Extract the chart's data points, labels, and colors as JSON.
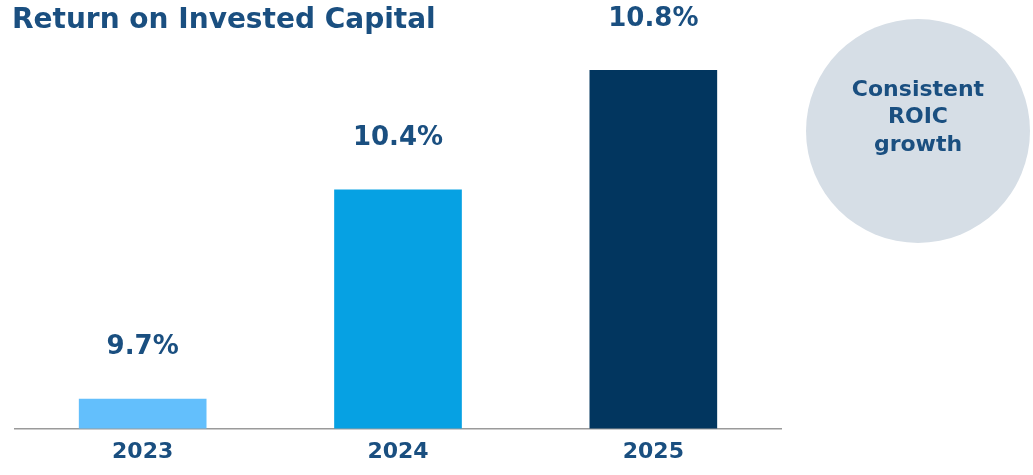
{
  "chart_data": {
    "type": "bar",
    "title": "Return on Invested Capital",
    "categories": [
      "2023",
      "2024",
      "2025"
    ],
    "values": [
      9.7,
      10.4,
      10.8
    ],
    "colors": [
      "#63bffc",
      "#06a1e3",
      "#02365f"
    ],
    "value_labels": [
      "9.7%",
      "10.4%",
      "10.8%"
    ],
    "tick_labels": "x",
    "grid": false,
    "legend": false,
    "annotations": [
      "Consistent ROIC growth"
    ]
  }
}
